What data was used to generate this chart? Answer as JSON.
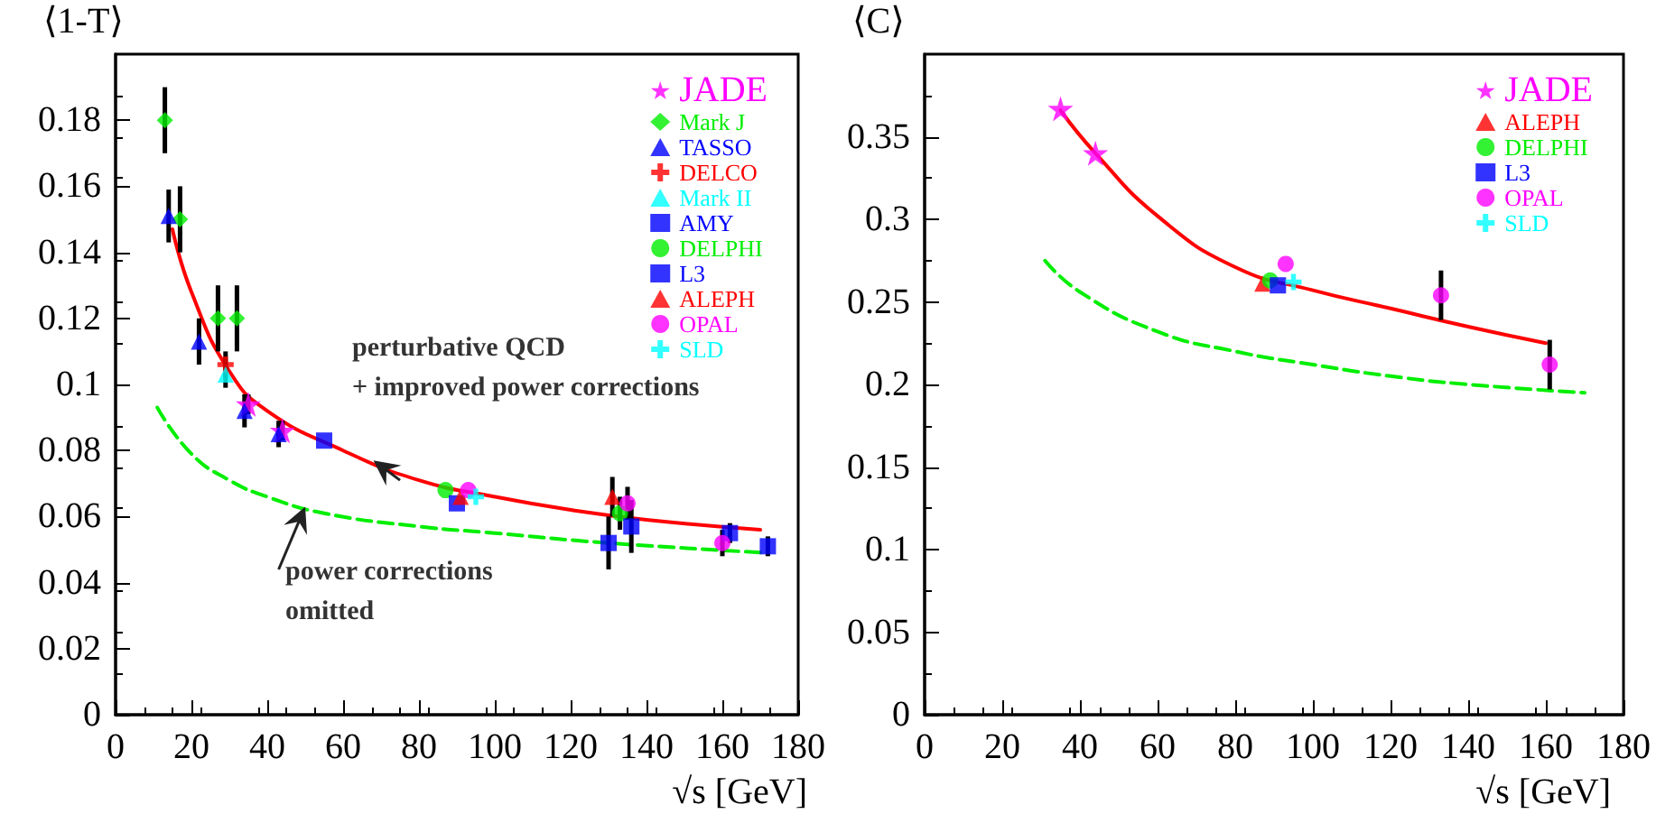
{
  "chart_data": [
    {
      "type": "scatter",
      "xlabel": "√s [GeV]",
      "ylabel": "⟨1-T⟩",
      "xlim": [
        0,
        180
      ],
      "xticks": [
        0,
        20,
        40,
        60,
        80,
        100,
        120,
        140,
        160,
        180
      ],
      "ylim": [
        0,
        0.2
      ],
      "yticks": [
        0,
        0.02,
        0.04,
        0.06,
        0.08,
        0.1,
        0.12,
        0.14,
        0.16,
        0.18
      ],
      "legend": "top right",
      "grid": false,
      "annotations": [
        "perturbative QCD\n+ improved power corrections",
        "power corrections\nomitted"
      ],
      "series": [
        {
          "name": "JADE",
          "color": "#ff00ff",
          "marker": "star",
          "x": [
            35,
            44
          ],
          "values": [
            0.094,
            0.086
          ],
          "errors": [
            0.003,
            0.003
          ]
        },
        {
          "name": "Mark J",
          "color": "#00ee00",
          "marker": "diamond",
          "x": [
            13,
            17,
            27,
            32
          ],
          "values": [
            0.18,
            0.15,
            0.12,
            0.12
          ],
          "errors": [
            0.01,
            0.01,
            0.01,
            0.01
          ]
        },
        {
          "name": "TASSO",
          "color": "#0000ff",
          "marker": "triangle",
          "x": [
            14,
            22,
            34,
            43
          ],
          "values": [
            0.151,
            0.113,
            0.092,
            0.085
          ],
          "errors": [
            0.008,
            0.007,
            0.005,
            0.004
          ]
        },
        {
          "name": "DELCO",
          "color": "#ff0000",
          "marker": "cross",
          "x": [
            29
          ],
          "values": [
            0.106
          ],
          "errors": [
            0.004
          ]
        },
        {
          "name": "Mark II",
          "color": "#00ffff",
          "marker": "triangle",
          "x": [
            29
          ],
          "values": [
            0.103
          ],
          "errors": [
            0.004
          ]
        },
        {
          "name": "AMY",
          "color": "#0000ff",
          "marker": "square",
          "x": [
            55
          ],
          "values": [
            0.083
          ],
          "errors": [
            null
          ]
        },
        {
          "name": "DELPHI",
          "color": "#00ee00",
          "marker": "circle",
          "x": [
            87,
            133
          ],
          "values": [
            0.068,
            0.061
          ],
          "errors": [
            null,
            0.005
          ]
        },
        {
          "name": "L3",
          "color": "#0000ff",
          "marker": "square",
          "x": [
            90,
            130,
            136,
            162,
            172
          ],
          "values": [
            0.064,
            0.052,
            0.057,
            0.055,
            0.051
          ],
          "errors": [
            null,
            0.008,
            0.008,
            0.003,
            0.003
          ]
        },
        {
          "name": "ALEPH",
          "color": "#ff0000",
          "marker": "triangle",
          "x": [
            91,
            131
          ],
          "values": [
            0.066,
            0.066
          ],
          "errors": [
            null,
            0.006
          ]
        },
        {
          "name": "OPAL",
          "color": "#ff00ff",
          "marker": "circle",
          "x": [
            93,
            135,
            160
          ],
          "values": [
            0.068,
            0.064,
            0.052
          ],
          "errors": [
            null,
            0.005,
            0.004
          ]
        },
        {
          "name": "SLD",
          "color": "#00ffff",
          "marker": "cross",
          "x": [
            95
          ],
          "values": [
            0.066
          ],
          "errors": [
            null
          ]
        },
        {
          "type": "line",
          "color": "#ff0000",
          "line_style": "solid",
          "marker": "none",
          "x": [
            15,
            20,
            30,
            40,
            60,
            80,
            100,
            120,
            140,
            170
          ],
          "values": [
            0.147,
            0.128,
            0.104,
            0.092,
            0.08,
            0.071,
            0.066,
            0.062,
            0.059,
            0.056
          ]
        },
        {
          "type": "line",
          "color": "#00ee00",
          "line_style": "dashed",
          "marker": "none",
          "x": [
            11,
            20,
            30,
            40,
            55,
            80,
            100,
            130,
            172
          ],
          "values": [
            0.093,
            0.079,
            0.071,
            0.066,
            0.061,
            0.057,
            0.055,
            0.052,
            0.049
          ]
        }
      ]
    },
    {
      "type": "scatter",
      "xlabel": "√s [GeV]",
      "ylabel": "⟨C⟩",
      "xlim": [
        0,
        180
      ],
      "xticks": [
        0,
        20,
        40,
        60,
        80,
        100,
        120,
        140,
        160,
        180
      ],
      "ylim": [
        0,
        0.4
      ],
      "yticks": [
        0,
        0.05,
        0.1,
        0.15,
        0.2,
        0.25,
        0.3,
        0.35
      ],
      "legend": "top right",
      "grid": false,
      "series": [
        {
          "name": "JADE",
          "color": "#ff00ff",
          "marker": "star",
          "x": [
            35,
            44
          ],
          "values": [
            0.367,
            0.34
          ],
          "errors": [
            null,
            null
          ]
        },
        {
          "name": "ALEPH",
          "color": "#ff0000",
          "marker": "triangle",
          "x": [
            87
          ],
          "values": [
            0.261
          ],
          "errors": [
            null
          ]
        },
        {
          "name": "DELPHI",
          "color": "#00ee00",
          "marker": "circle",
          "x": [
            89
          ],
          "values": [
            0.263
          ],
          "errors": [
            null
          ]
        },
        {
          "name": "L3",
          "color": "#0000ff",
          "marker": "square",
          "x": [
            91
          ],
          "values": [
            0.26
          ],
          "errors": [
            null
          ]
        },
        {
          "name": "OPAL",
          "color": "#ff00ff",
          "marker": "circle",
          "x": [
            93,
            133,
            161
          ],
          "values": [
            0.273,
            0.254,
            0.212
          ],
          "errors": [
            null,
            0.015,
            0.015
          ]
        },
        {
          "name": "SLD",
          "color": "#00ffff",
          "marker": "cross",
          "x": [
            95
          ],
          "values": [
            0.262
          ],
          "errors": [
            null
          ]
        },
        {
          "type": "line",
          "color": "#ff0000",
          "line_style": "solid",
          "marker": "none",
          "x": [
            35,
            44,
            60,
            80,
            100,
            120,
            140,
            160
          ],
          "values": [
            0.366,
            0.34,
            0.302,
            0.271,
            0.257,
            0.246,
            0.235,
            0.225
          ]
        },
        {
          "type": "line",
          "color": "#00ee00",
          "line_style": "dashed",
          "marker": "none",
          "x": [
            31,
            40,
            60,
            80,
            100,
            120,
            140,
            170
          ],
          "values": [
            0.275,
            0.256,
            0.232,
            0.22,
            0.212,
            0.205,
            0.2,
            0.195
          ]
        }
      ]
    }
  ]
}
